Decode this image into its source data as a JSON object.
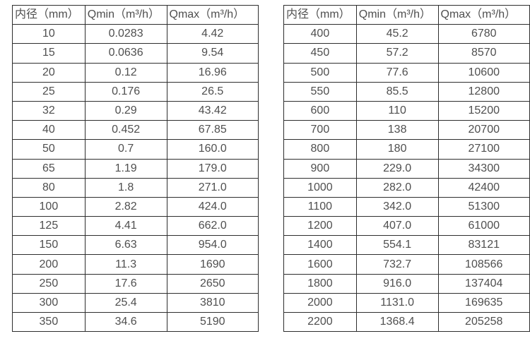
{
  "colors": {
    "background": "#ffffff",
    "border": "#2e2e2e",
    "text": "#4f4f4f"
  },
  "table_left": {
    "headers": [
      "内径（mm）",
      "Qmin（m³/h）",
      "Qmax（m³/h）"
    ],
    "rows": [
      [
        "10",
        "0.0283",
        "4.42"
      ],
      [
        "15",
        "0.0636",
        "9.54"
      ],
      [
        "20",
        "0.12",
        "16.96"
      ],
      [
        "25",
        "0.176",
        "26.5"
      ],
      [
        "32",
        "0.29",
        "43.42"
      ],
      [
        "40",
        "0.452",
        "67.85"
      ],
      [
        "50",
        "0.7",
        "160.0"
      ],
      [
        "65",
        "1.19",
        "179.0"
      ],
      [
        "80",
        "1.8",
        "271.0"
      ],
      [
        "100",
        "2.82",
        "424.0"
      ],
      [
        "125",
        "4.41",
        "662.0"
      ],
      [
        "150",
        "6.63",
        "954.0"
      ],
      [
        "200",
        "11.3",
        "1690"
      ],
      [
        "250",
        "17.6",
        "2650"
      ],
      [
        "300",
        "25.4",
        "3810"
      ],
      [
        "350",
        "34.6",
        "5190"
      ]
    ]
  },
  "table_right": {
    "headers": [
      "内径（mm）",
      "Qmin（m³/h）",
      "Qmax（m³/h）"
    ],
    "rows": [
      [
        "400",
        "45.2",
        "6780"
      ],
      [
        "450",
        "57.2",
        "8570"
      ],
      [
        "500",
        "77.6",
        "10600"
      ],
      [
        "550",
        "85.5",
        "12800"
      ],
      [
        "600",
        "110",
        "15200"
      ],
      [
        "700",
        "138",
        "20700"
      ],
      [
        "800",
        "180",
        "27100"
      ],
      [
        "900",
        "229.0",
        "34300"
      ],
      [
        "1000",
        "282.0",
        "42400"
      ],
      [
        "1100",
        "342.0",
        "51300"
      ],
      [
        "1200",
        "407.0",
        "61000"
      ],
      [
        "1400",
        "554.1",
        "83121"
      ],
      [
        "1600",
        "732.7",
        "108566"
      ],
      [
        "1800",
        "916.0",
        "137404"
      ],
      [
        "2000",
        "1131.0",
        "169635"
      ],
      [
        "2200",
        "1368.4",
        "205258"
      ]
    ]
  }
}
